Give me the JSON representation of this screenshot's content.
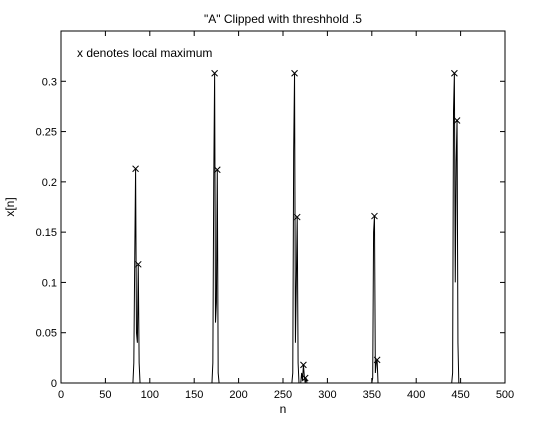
{
  "chart_data": {
    "type": "line",
    "title": "\"A\" Clipped with threshhold .5",
    "xlabel": "n",
    "ylabel": "x[n]",
    "annotation": "x denotes local maximum",
    "xlim": [
      0,
      500
    ],
    "ylim": [
      0,
      0.35
    ],
    "xticks": [
      0,
      50,
      100,
      150,
      200,
      250,
      300,
      350,
      400,
      450,
      500
    ],
    "yticks": [
      0,
      0.05,
      0.1,
      0.15,
      0.2,
      0.25,
      0.3
    ],
    "xtick_labels": [
      "0",
      "50",
      "100",
      "150",
      "200",
      "250",
      "300",
      "350",
      "400",
      "450",
      "500"
    ],
    "ytick_labels": [
      "0",
      "0.05",
      "0.1",
      "0.15",
      "0.2",
      "0.25",
      "0.3"
    ],
    "grid": false,
    "series": [
      {
        "color": "#000000",
        "x": [
          0,
          81,
          82,
          83,
          84,
          85,
          86,
          87,
          88,
          89,
          90,
          170,
          171,
          172,
          173,
          174,
          175,
          176,
          177,
          178,
          179,
          180,
          260,
          261,
          262,
          263,
          264,
          265,
          266,
          267,
          268,
          269,
          270,
          271,
          272,
          273,
          274,
          275,
          276,
          277,
          278,
          350,
          351,
          352,
          353,
          354,
          355,
          356,
          357,
          358,
          359,
          440,
          441,
          442,
          443,
          444,
          445,
          446,
          447,
          448,
          449,
          500
        ],
        "y": [
          0,
          0,
          0.02,
          0.12,
          0.213,
          0.05,
          0.04,
          0.118,
          0.02,
          0,
          0,
          0,
          0.02,
          0.2,
          0.308,
          0.06,
          0.08,
          0.212,
          0.01,
          0,
          0,
          0,
          0,
          0.01,
          0.23,
          0.308,
          0.04,
          0.1,
          0.165,
          0.02,
          0,
          0,
          0,
          0.01,
          0.003,
          0.018,
          0.007,
          0,
          0.005,
          0,
          0,
          0,
          0.005,
          0.15,
          0.166,
          0.01,
          0.02,
          0.023,
          0,
          0,
          0,
          0,
          0.01,
          0.27,
          0.308,
          0.1,
          0.22,
          0.261,
          0.04,
          0,
          0,
          0
        ]
      }
    ],
    "local_maxima": {
      "marker": "x",
      "x": [
        84,
        87,
        173,
        176,
        263,
        266,
        273,
        275,
        353,
        356,
        443,
        446
      ],
      "y": [
        0.213,
        0.118,
        0.308,
        0.212,
        0.308,
        0.165,
        0.018,
        0.005,
        0.166,
        0.023,
        0.308,
        0.261
      ]
    }
  }
}
